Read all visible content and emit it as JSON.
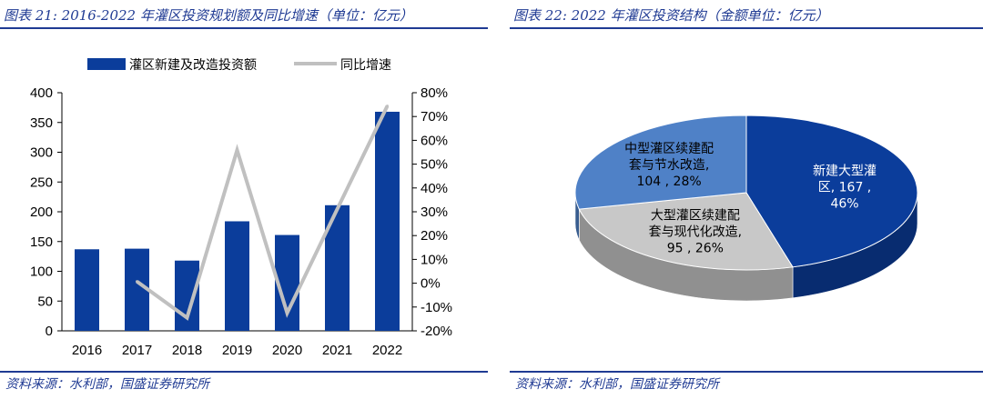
{
  "left": {
    "title": "图表 21:  2016-2022 年灌区投资规划额及同比增速（单位：亿元）",
    "source": "资料来源：水利部，国盛证券研究所"
  },
  "right": {
    "title": "图表 22:  2022 年灌区投资结构（金额单位：亿元）",
    "source": "资料来源：水利部，国盛证券研究所"
  },
  "chart_data": [
    {
      "type": "bar",
      "categories": [
        "2016",
        "2017",
        "2018",
        "2019",
        "2020",
        "2021",
        "2022"
      ],
      "series": [
        {
          "name": "灌区新建及改造投资额",
          "type": "bar",
          "axis": "left",
          "color": "#0b3d9b",
          "values": [
            137,
            138,
            118,
            184,
            161,
            211,
            368
          ]
        },
        {
          "name": "同比增速",
          "type": "line",
          "axis": "right",
          "color": "#c0c0c0",
          "values": [
            null,
            0.007,
            -0.145,
            0.559,
            -0.125,
            0.311,
            0.744
          ]
        }
      ],
      "yticks_left": [
        "0",
        "50",
        "100",
        "150",
        "200",
        "250",
        "300",
        "350",
        "400"
      ],
      "yticks_right": [
        "-20%",
        "-10%",
        "0%",
        "10%",
        "20%",
        "30%",
        "40%",
        "50%",
        "60%",
        "70%",
        "80%"
      ],
      "ylim_left": [
        0,
        400
      ],
      "ylim_right": [
        -0.2,
        0.8
      ],
      "legend_position": "top"
    },
    {
      "type": "pie",
      "style": "3d",
      "slices": [
        {
          "lines": [
            "新建大型灌",
            "区, 167 ,",
            "46%"
          ],
          "value": 167,
          "percent": 46,
          "color": "#0b3d9b",
          "label_color": "#ffffff"
        },
        {
          "lines": [
            "大型灌区续建配",
            "套与现代化改造,",
            "95 , 26%"
          ],
          "value": 95,
          "percent": 26,
          "color": "#c8c8c8",
          "label_color": "#000000"
        },
        {
          "lines": [
            "中型灌区续建配",
            "套与节水改造,",
            "104 , 28%"
          ],
          "value": 104,
          "percent": 28,
          "color": "#4f81c7",
          "label_color": "#000000"
        }
      ]
    }
  ]
}
